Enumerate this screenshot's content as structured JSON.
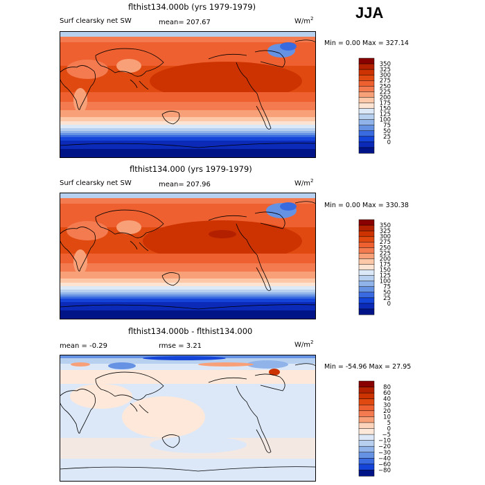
{
  "season": "JJA",
  "panels": [
    {
      "title": "flthist134.000b (yrs 1979-1979)",
      "left_label": "Surf clearsky net SW",
      "stat_label": "mean= 207.67",
      "stat2_label": "",
      "units_text": "W/m",
      "units_exp": "2",
      "minmax": "Min =    0.00 Max = 327.14",
      "colorbar_ticks": [
        "350",
        "325",
        "300",
        "275",
        "250",
        "225",
        "200",
        "175",
        "150",
        "125",
        "100",
        "75",
        "50",
        "25",
        "0"
      ],
      "colors": [
        "#880000",
        "#b22000",
        "#cc3300",
        "#e04a10",
        "#ee6030",
        "#f47a50",
        "#f8a078",
        "#fcc8a8",
        "#fde4d2",
        "#dbe8f8",
        "#b8d0f0",
        "#90b4ea",
        "#6692e4",
        "#3a6ae0",
        "#1444d8",
        "#0c2ab8",
        "#001488"
      ]
    },
    {
      "title": "flthist134.000 (yrs 1979-1979)",
      "left_label": "Surf clearsky net SW",
      "stat_label": "mean= 207.96",
      "stat2_label": "",
      "units_text": "W/m",
      "units_exp": "2",
      "minmax": "Min =    0.00 Max = 330.38",
      "colorbar_ticks": [
        "350",
        "325",
        "300",
        "275",
        "250",
        "225",
        "200",
        "175",
        "150",
        "125",
        "100",
        "75",
        "50",
        "25",
        "0"
      ],
      "colors": [
        "#880000",
        "#b22000",
        "#cc3300",
        "#e04a10",
        "#ee6030",
        "#f47a50",
        "#f8a078",
        "#fcc8a8",
        "#fde4d2",
        "#dbe8f8",
        "#b8d0f0",
        "#90b4ea",
        "#6692e4",
        "#3a6ae0",
        "#1444d8",
        "#0c2ab8",
        "#001488"
      ]
    },
    {
      "title": "flthist134.000b - flthist134.000",
      "left_label": "mean =   -0.29",
      "stat_label": "rmse =   3.21",
      "stat2_label": "",
      "units_text": "W/m",
      "units_exp": "2",
      "minmax": "Min = -54.96  Max =  27.95",
      "colorbar_ticks": [
        "80",
        "60",
        "40",
        "30",
        "20",
        "10",
        "5",
        "0",
        "−5",
        "−10",
        "−20",
        "−30",
        "−40",
        "−60",
        "−80"
      ],
      "colors": [
        "#880000",
        "#b22000",
        "#cc3300",
        "#e04a10",
        "#ee6030",
        "#f47a50",
        "#f8a078",
        "#fcd4bc",
        "#fde8da",
        "#dce8f8",
        "#b8d0f0",
        "#90b4ea",
        "#6692e4",
        "#3a6ae0",
        "#1444d8",
        "#001488"
      ]
    }
  ],
  "chart_data": [
    {
      "type": "heatmap",
      "title": "flthist134.000b (yrs 1979-1979)",
      "variable": "Surf clearsky net SW",
      "units": "W/m2",
      "mean": 207.67,
      "min": 0.0,
      "max": 327.14,
      "colorbar_levels": [
        0,
        25,
        50,
        75,
        100,
        125,
        150,
        175,
        200,
        225,
        250,
        275,
        300,
        325,
        350
      ],
      "domain": "global map (lon x lat)"
    },
    {
      "type": "heatmap",
      "title": "flthist134.000 (yrs 1979-1979)",
      "variable": "Surf clearsky net SW",
      "units": "W/m2",
      "mean": 207.96,
      "min": 0.0,
      "max": 330.38,
      "colorbar_levels": [
        0,
        25,
        50,
        75,
        100,
        125,
        150,
        175,
        200,
        225,
        250,
        275,
        300,
        325,
        350
      ],
      "domain": "global map (lon x lat)"
    },
    {
      "type": "heatmap",
      "title": "flthist134.000b - flthist134.000",
      "units": "W/m2",
      "mean": -0.29,
      "rmse": 3.21,
      "min": -54.96,
      "max": 27.95,
      "colorbar_levels": [
        -80,
        -60,
        -40,
        -30,
        -20,
        -10,
        -5,
        0,
        5,
        10,
        20,
        30,
        40,
        60,
        80
      ],
      "domain": "global map (lon x lat)"
    }
  ]
}
